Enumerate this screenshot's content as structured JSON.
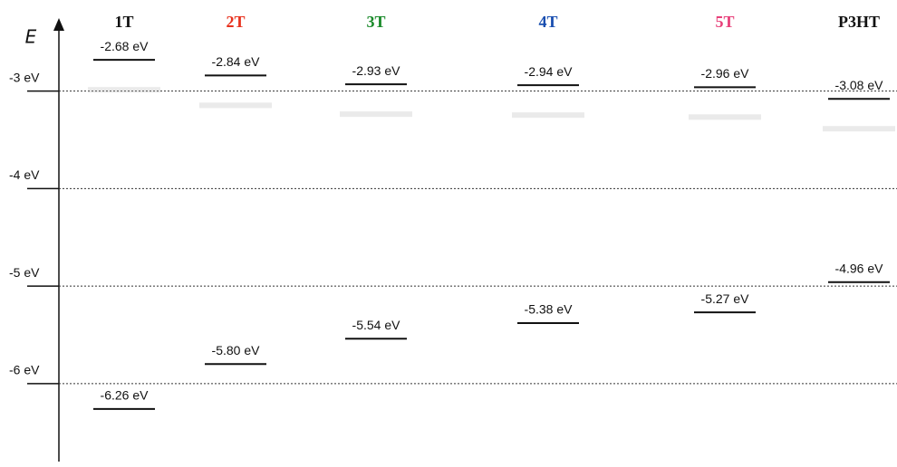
{
  "chart_data": {
    "type": "energy-levels",
    "y_label": "E",
    "categories": [
      "1T",
      "2T",
      "3T",
      "4T",
      "5T",
      "P3HT"
    ],
    "category_colors": [
      "#111111",
      "#e8321e",
      "#1a8a2a",
      "#1a4fb0",
      "#e8407a",
      "#111111"
    ],
    "series": [
      {
        "values": [
          -2.68,
          -2.84,
          -2.93,
          -2.94,
          -2.96,
          -3.08
        ],
        "value_labels": [
          "-2.68 eV",
          "-2.84 eV",
          "-2.93 eV",
          "-2.94 eV",
          "-2.96 eV",
          "-3.08 eV"
        ]
      },
      {
        "values": [
          -6.26,
          -5.8,
          -5.54,
          -5.38,
          -5.27,
          -4.96
        ],
        "value_labels": [
          "-6.26 eV",
          "-5.80 eV",
          "-5.54 eV",
          "-5.38 eV",
          "-5.27 eV",
          "-4.96 eV"
        ]
      }
    ],
    "ylim": [
      -6.8,
      -2.27
    ],
    "yticks": [
      {
        "value": -3,
        "label": "-3 eV"
      },
      {
        "value": -4,
        "label": "-4 eV"
      },
      {
        "value": -5,
        "label": "-5 eV"
      },
      {
        "value": -6,
        "label": "-6 eV"
      }
    ],
    "grid": true
  }
}
